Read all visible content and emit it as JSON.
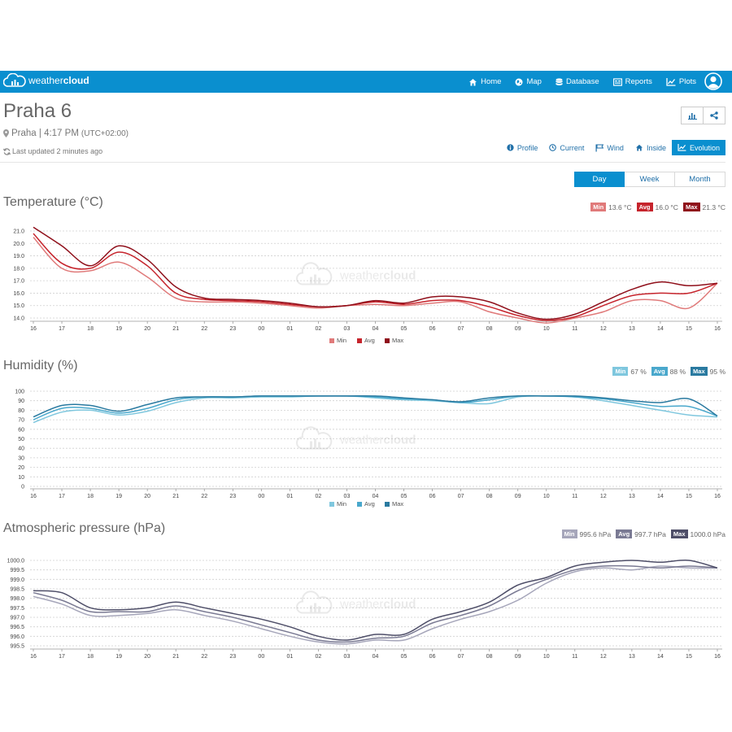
{
  "navbar": {
    "brand": {
      "light": "weather",
      "bold": "cloud"
    },
    "items": [
      {
        "label": "Home",
        "icon": "home-icon"
      },
      {
        "label": "Map",
        "icon": "globe-icon"
      },
      {
        "label": "Database",
        "icon": "database-icon"
      },
      {
        "label": "Reports",
        "icon": "reports-icon"
      },
      {
        "label": "Plots",
        "icon": "line-chart-icon"
      }
    ]
  },
  "station": {
    "name": "Praha 6",
    "location": "Praha | 4:17 PM",
    "timezone": "(UTC+02:00)",
    "updated": "Last updated 2 minutes ago"
  },
  "subnav": {
    "items": [
      {
        "label": "Profile",
        "icon": "info-icon"
      },
      {
        "label": "Current",
        "icon": "clock-icon"
      },
      {
        "label": "Wind",
        "icon": "flag-icon"
      },
      {
        "label": "Inside",
        "icon": "home-icon"
      },
      {
        "label": "Evolution",
        "icon": "line-chart-icon",
        "active": true
      }
    ]
  },
  "period": {
    "day": "Day",
    "week": "Week",
    "month": "Month",
    "selected": "Day"
  },
  "watermark": {
    "light": "weather",
    "bold": "cloud"
  },
  "colors": {
    "brand": "#0a8fcf",
    "temp": [
      "#e07a7a",
      "#c6242c",
      "#8f0f1a"
    ],
    "hum": [
      "#7fc7de",
      "#4aa8cc",
      "#2a7aa0"
    ],
    "pres": [
      "#a6a6ba",
      "#7a7a93",
      "#4e4e68"
    ]
  },
  "legend": {
    "min": "Min",
    "avg": "Avg",
    "max": "Max"
  },
  "sections": [
    {
      "title": "Temperature (°C)",
      "min_value": "13.6 °C",
      "avg_value": "16.0 °C",
      "max_value": "21.3 °C"
    },
    {
      "title": "Humidity (%)",
      "min_value": "67 %",
      "avg_value": "88 %",
      "max_value": "95 %"
    },
    {
      "title": "Atmospheric pressure (hPa)",
      "min_value": "995.6 hPa",
      "avg_value": "997.7 hPa",
      "max_value": "1000.0 hPa"
    }
  ],
  "chart_data": [
    {
      "type": "line",
      "title": "Temperature (°C)",
      "x": [
        "16",
        "17",
        "18",
        "19",
        "20",
        "21",
        "22",
        "23",
        "00",
        "01",
        "02",
        "03",
        "04",
        "05",
        "06",
        "07",
        "08",
        "09",
        "10",
        "11",
        "12",
        "13",
        "14",
        "15",
        "16"
      ],
      "ylim": [
        14.0,
        21.0
      ],
      "yticks": [
        "14.0",
        "15.0",
        "16.0",
        "17.0",
        "18.0",
        "19.0",
        "20.0",
        "21.0"
      ],
      "grid": true,
      "legend": "bottom",
      "series": [
        {
          "name": "Min",
          "values": [
            20.5,
            18.0,
            17.8,
            18.5,
            17.3,
            15.6,
            15.3,
            15.3,
            15.2,
            15.0,
            14.8,
            15.0,
            15.1,
            15.0,
            15.2,
            15.3,
            14.5,
            14.0,
            13.6,
            14.0,
            14.5,
            15.4,
            15.4,
            14.8,
            16.8
          ]
        },
        {
          "name": "Avg",
          "values": [
            20.8,
            18.4,
            18.0,
            19.3,
            18.2,
            16.0,
            15.5,
            15.4,
            15.3,
            15.1,
            14.9,
            15.0,
            15.3,
            15.1,
            15.4,
            15.4,
            14.9,
            14.2,
            13.8,
            14.1,
            15.0,
            15.8,
            16.0,
            16.0,
            16.8
          ]
        },
        {
          "name": "Max",
          "values": [
            21.3,
            19.8,
            18.2,
            19.8,
            18.7,
            16.5,
            15.6,
            15.5,
            15.4,
            15.2,
            14.9,
            15.0,
            15.4,
            15.2,
            15.7,
            15.7,
            15.3,
            14.4,
            13.9,
            14.3,
            15.3,
            16.3,
            16.9,
            16.6,
            16.8
          ]
        }
      ]
    },
    {
      "type": "line",
      "title": "Humidity (%)",
      "x": [
        "16",
        "17",
        "18",
        "19",
        "20",
        "21",
        "22",
        "23",
        "00",
        "01",
        "02",
        "03",
        "04",
        "05",
        "06",
        "07",
        "08",
        "09",
        "10",
        "11",
        "12",
        "13",
        "14",
        "15",
        "16"
      ],
      "ylim": [
        0,
        100
      ],
      "yticks": [
        "0",
        "10",
        "20",
        "30",
        "40",
        "50",
        "60",
        "70",
        "80",
        "90",
        "100"
      ],
      "grid": true,
      "legend": "bottom",
      "series": [
        {
          "name": "Min",
          "values": [
            67,
            78,
            80,
            75,
            79,
            88,
            93,
            93,
            94,
            94,
            95,
            95,
            93,
            91,
            90,
            88,
            87,
            94,
            95,
            94,
            90,
            85,
            80,
            75,
            73
          ]
        },
        {
          "name": "Avg",
          "values": [
            70,
            82,
            82,
            77,
            82,
            91,
            94,
            94,
            95,
            95,
            95,
            95,
            94,
            92,
            91,
            88,
            91,
            95,
            95,
            94,
            92,
            88,
            84,
            84,
            74
          ]
        },
        {
          "name": "Max",
          "values": [
            73,
            85,
            85,
            79,
            86,
            93,
            94,
            94,
            95,
            95,
            95,
            95,
            95,
            93,
            91,
            89,
            93,
            95,
            95,
            95,
            93,
            90,
            88,
            92,
            74
          ]
        }
      ]
    },
    {
      "type": "line",
      "title": "Atmospheric pressure (hPa)",
      "x": [
        "16",
        "17",
        "18",
        "19",
        "20",
        "21",
        "22",
        "23",
        "00",
        "01",
        "02",
        "03",
        "04",
        "05",
        "06",
        "07",
        "08",
        "09",
        "10",
        "11",
        "12",
        "13",
        "14",
        "15",
        "16"
      ],
      "ylim": [
        995.5,
        1000.0
      ],
      "yticks": [
        "995.5",
        "996.0",
        "996.5",
        "997.0",
        "997.5",
        "998.0",
        "998.5",
        "999.0",
        "999.5",
        "1000.0"
      ],
      "grid": true,
      "legend": "none",
      "series": [
        {
          "name": "Min",
          "values": [
            998.1,
            997.7,
            997.1,
            997.1,
            997.2,
            997.4,
            997.1,
            996.8,
            996.4,
            996.0,
            995.7,
            995.6,
            995.8,
            995.8,
            996.4,
            996.9,
            997.3,
            997.9,
            998.8,
            999.4,
            999.6,
            999.5,
            999.7,
            999.6,
            999.6
          ]
        },
        {
          "name": "Avg",
          "values": [
            998.3,
            997.9,
            997.3,
            997.3,
            997.3,
            997.6,
            997.3,
            997.0,
            996.6,
            996.2,
            995.8,
            995.7,
            995.9,
            996.0,
            996.7,
            997.1,
            997.6,
            998.4,
            999.0,
            999.5,
            999.7,
            999.7,
            999.6,
            999.7,
            999.6
          ]
        },
        {
          "name": "Max",
          "values": [
            998.4,
            998.3,
            997.5,
            997.4,
            997.5,
            997.8,
            997.5,
            997.2,
            996.9,
            996.5,
            996.0,
            995.8,
            996.1,
            996.1,
            996.9,
            997.3,
            997.8,
            998.7,
            999.1,
            999.7,
            999.9,
            1000.0,
            999.9,
            1000.0,
            999.6
          ]
        }
      ]
    }
  ]
}
